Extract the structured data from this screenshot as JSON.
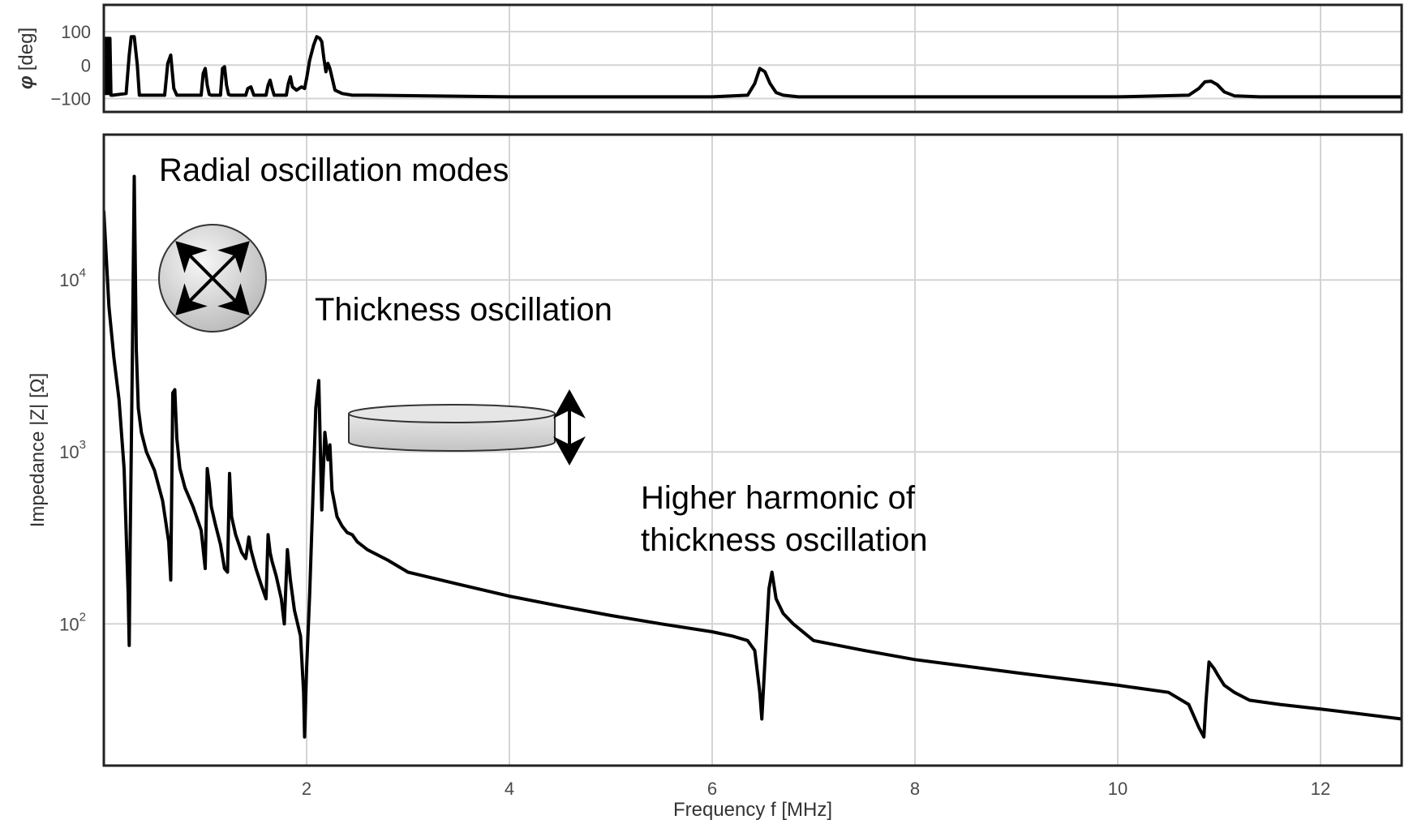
{
  "chart_data": [
    {
      "type": "line",
      "panel": "phase",
      "ylabel": "φ [deg]",
      "ylabel_symbol": "φ",
      "ylabel_unit": "[deg]",
      "ylim": [
        -140,
        180
      ],
      "xlim": [
        0,
        12.8
      ],
      "yticks": [
        100,
        0,
        -100
      ],
      "ytick_labels": [
        "100",
        "0",
        "−100"
      ],
      "grid": true,
      "series": [
        {
          "x": [
            0.01,
            0.02,
            0.03,
            0.04,
            0.05,
            0.06,
            0.07,
            0.09,
            0.22,
            0.25,
            0.27,
            0.3,
            0.33,
            0.35,
            0.38,
            0.6,
            0.63,
            0.66,
            0.69,
            0.72,
            0.96,
            0.98,
            1.0,
            1.02,
            1.04,
            1.06,
            1.15,
            1.17,
            1.19,
            1.21,
            1.23,
            1.25,
            1.4,
            1.42,
            1.45,
            1.48,
            1.6,
            1.62,
            1.64,
            1.66,
            1.68,
            1.8,
            1.82,
            1.84,
            1.86,
            1.9,
            1.95,
            1.98,
            2.0,
            2.03,
            2.07,
            2.1,
            2.13,
            2.15,
            2.17,
            2.19,
            2.21,
            2.23,
            2.28,
            2.35,
            2.45,
            2.6,
            4.0,
            6.0,
            6.35,
            6.42,
            6.47,
            6.52,
            6.57,
            6.63,
            6.7,
            6.85,
            10.0,
            10.7,
            10.8,
            10.86,
            10.92,
            10.98,
            11.05,
            11.15,
            11.4,
            12.8
          ],
          "y": [
            -85,
            80,
            -85,
            80,
            -85,
            80,
            -90,
            -90,
            -85,
            30,
            85,
            85,
            0,
            -90,
            -90,
            -90,
            5,
            30,
            -70,
            -90,
            -90,
            -25,
            -10,
            -60,
            -88,
            -90,
            -90,
            -10,
            -5,
            -60,
            -88,
            -90,
            -90,
            -70,
            -65,
            -90,
            -90,
            -60,
            -45,
            -70,
            -90,
            -90,
            -55,
            -35,
            -65,
            -75,
            -65,
            -70,
            -40,
            15,
            60,
            85,
            80,
            70,
            20,
            -20,
            5,
            -10,
            -75,
            -85,
            -90,
            -90,
            -95,
            -95,
            -90,
            -55,
            -10,
            -20,
            -55,
            -82,
            -90,
            -95,
            -95,
            -90,
            -70,
            -50,
            -48,
            -58,
            -80,
            -92,
            -95,
            -95
          ]
        }
      ]
    },
    {
      "type": "line",
      "panel": "impedance",
      "title": "",
      "xlabel": "Frequency f [MHz]",
      "ylabel": "Impedance |Z| [Ω]",
      "yscale": "log",
      "xlim": [
        0,
        12.8
      ],
      "ylim": [
        15,
        70000
      ],
      "xticks": [
        2,
        4,
        6,
        8,
        10,
        12
      ],
      "xtick_labels": [
        "2",
        "4",
        "6",
        "8",
        "10",
        "12"
      ],
      "yticks": [
        100,
        1000,
        10000
      ],
      "ytick_base": "10",
      "ytick_exps": [
        "2",
        "3",
        "4"
      ],
      "grid": true,
      "series": [
        {
          "x": [
            0.0,
            0.05,
            0.1,
            0.15,
            0.2,
            0.24,
            0.25,
            0.26,
            0.28,
            0.3,
            0.32,
            0.34,
            0.37,
            0.42,
            0.5,
            0.58,
            0.64,
            0.66,
            0.68,
            0.7,
            0.72,
            0.75,
            0.8,
            0.88,
            0.96,
            1.0,
            1.02,
            1.04,
            1.06,
            1.1,
            1.15,
            1.19,
            1.22,
            1.24,
            1.26,
            1.3,
            1.36,
            1.4,
            1.43,
            1.45,
            1.5,
            1.55,
            1.6,
            1.62,
            1.64,
            1.66,
            1.7,
            1.75,
            1.78,
            1.81,
            1.84,
            1.88,
            1.94,
            1.97,
            1.98,
            2.0,
            2.03,
            2.06,
            2.09,
            2.12,
            2.15,
            2.18,
            2.21,
            2.23,
            2.25,
            2.3,
            2.35,
            2.4,
            2.45,
            2.5,
            2.6,
            2.8,
            3.0,
            3.5,
            4.0,
            4.5,
            5.0,
            5.5,
            6.0,
            6.2,
            6.35,
            6.42,
            6.47,
            6.49,
            6.52,
            6.56,
            6.59,
            6.63,
            6.7,
            6.8,
            7.0,
            7.5,
            8.0,
            9.0,
            10.0,
            10.5,
            10.7,
            10.8,
            10.85,
            10.87,
            10.9,
            10.95,
            10.99,
            11.05,
            11.15,
            11.3,
            11.6,
            12.0,
            12.8
          ],
          "y": [
            25000,
            7000,
            3500,
            2000,
            800,
            150,
            75,
            300,
            3000,
            40000,
            4000,
            1800,
            1300,
            1000,
            780,
            520,
            300,
            180,
            2200,
            2300,
            1200,
            800,
            620,
            480,
            350,
            210,
            800,
            650,
            480,
            380,
            290,
            210,
            200,
            750,
            420,
            330,
            260,
            240,
            320,
            270,
            210,
            170,
            140,
            330,
            260,
            230,
            190,
            140,
            100,
            270,
            180,
            120,
            85,
            40,
            22,
            55,
            150,
            500,
            1800,
            2600,
            460,
            1300,
            900,
            1100,
            600,
            420,
            370,
            340,
            330,
            300,
            270,
            235,
            200,
            170,
            145,
            127,
            112,
            100,
            90,
            85,
            80,
            70,
            40,
            28,
            60,
            160,
            200,
            140,
            115,
            100,
            80,
            70,
            62,
            52,
            44,
            40,
            34,
            25,
            22,
            35,
            60,
            55,
            50,
            44,
            40,
            36,
            34,
            32,
            28
          ]
        }
      ]
    },
    {
      "annotations": {
        "radial_modes": "Radial oscillation modes",
        "thickness": "Thickness oscillation",
        "higher_harmonic_line1": "Higher harmonic of",
        "higher_harmonic_line2": "thickness oscillation"
      }
    }
  ]
}
